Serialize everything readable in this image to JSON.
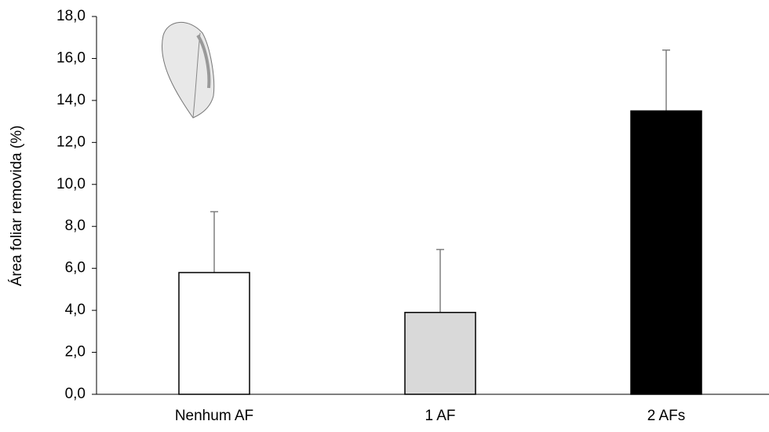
{
  "chart_data": {
    "type": "bar",
    "ylabel": "Área foliar removida (%)",
    "categories": [
      "Nenhum AF",
      "1 AF",
      "2 AFs"
    ],
    "values": [
      5.8,
      3.9,
      13.5
    ],
    "errors": [
      2.9,
      3.0,
      2.9
    ],
    "colors": [
      "#ffffff",
      "#d9d9d9",
      "#000000"
    ],
    "error_color": "#7f7f7f",
    "ylim": [
      0,
      18
    ],
    "yticks": [
      {
        "value": 0,
        "label": "0,0"
      },
      {
        "value": 2,
        "label": "2,0"
      },
      {
        "value": 4,
        "label": "4,0"
      },
      {
        "value": 6,
        "label": "6,0"
      },
      {
        "value": 8,
        "label": "8,0"
      },
      {
        "value": 10,
        "label": "10,0"
      },
      {
        "value": 12,
        "label": "12,0"
      },
      {
        "value": 14,
        "label": "14,0"
      },
      {
        "value": 16,
        "label": "16,0"
      },
      {
        "value": 18,
        "label": "18,0"
      }
    ],
    "grid": false
  }
}
